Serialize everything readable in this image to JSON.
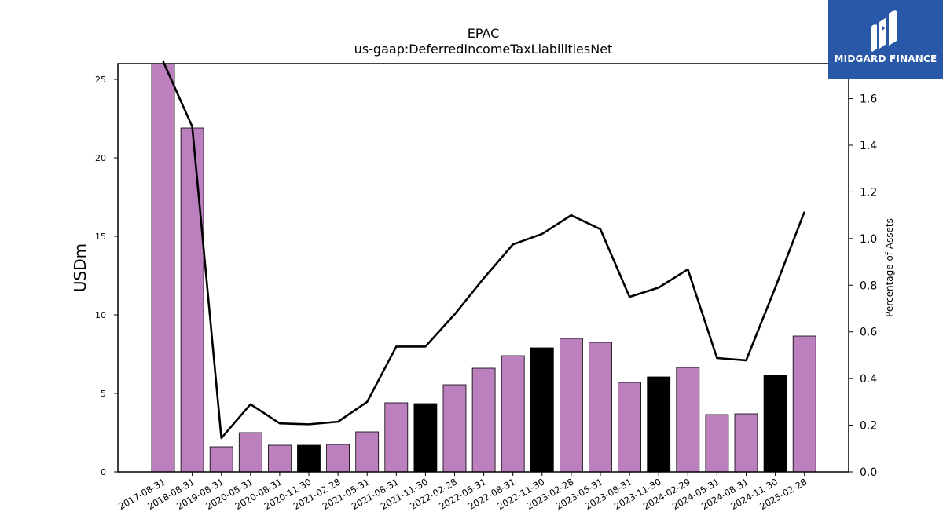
{
  "header": {
    "title": "EPAC",
    "subtitle": "us-gaap:DeferredIncomeTaxLiabilitiesNet"
  },
  "brand": {
    "name": "MIDGARD FINANCE",
    "color": "#2a58a8"
  },
  "chart_data": {
    "type": "bar",
    "title": "EPAC",
    "subtitle": "us-gaap:DeferredIncomeTaxLiabilitiesNet",
    "ylabel": "USDm",
    "y2label": "Percentage of Assets",
    "ylim": [
      0,
      26
    ],
    "y2lim": [
      0,
      1.75
    ],
    "yticks": [
      0,
      5,
      10,
      15,
      20,
      25
    ],
    "y2ticks": [
      "0.0",
      "0.2",
      "0.4",
      "0.6",
      "0.8",
      "1.0",
      "1.2",
      "1.4",
      "1.6"
    ],
    "grid": false,
    "categories": [
      "2017-08-31",
      "2018-08-31",
      "2019-08-31",
      "2020-05-31",
      "2020-08-31",
      "2020-11-30",
      "2021-02-28",
      "2021-05-31",
      "2021-08-31",
      "2021-11-30",
      "2022-02-28",
      "2022-05-31",
      "2022-08-31",
      "2022-11-30",
      "2023-02-28",
      "2023-05-31",
      "2023-08-31",
      "2023-11-30",
      "2024-02-29",
      "2024-05-31",
      "2024-08-31",
      "2024-11-30",
      "2025-02-28"
    ],
    "series": [
      {
        "kind": "bar",
        "axis": "left",
        "values": [
          26.0,
          21.9,
          1.6,
          2.5,
          1.7,
          1.7,
          1.75,
          2.55,
          4.4,
          4.35,
          5.55,
          6.6,
          7.4,
          7.9,
          8.5,
          8.25,
          5.7,
          6.05,
          6.65,
          3.65,
          3.7,
          6.15,
          8.65
        ],
        "colors": [
          "#bb80bd",
          "#bb80bd",
          "#bb80bd",
          "#bb80bd",
          "#bb80bd",
          "#000000",
          "#bb80bd",
          "#bb80bd",
          "#bb80bd",
          "#000000",
          "#bb80bd",
          "#bb80bd",
          "#bb80bd",
          "#000000",
          "#bb80bd",
          "#bb80bd",
          "#bb80bd",
          "#000000",
          "#bb80bd",
          "#bb80bd",
          "#bb80bd",
          "#000000",
          "#bb80bd"
        ]
      },
      {
        "kind": "line",
        "axis": "right",
        "color": "#000000",
        "values": [
          1.76,
          1.48,
          0.145,
          0.29,
          0.208,
          0.204,
          0.215,
          0.3,
          0.537,
          0.537,
          0.675,
          0.83,
          0.975,
          1.02,
          1.1,
          1.04,
          0.75,
          0.79,
          0.868,
          0.488,
          0.478,
          0.79,
          1.115
        ]
      }
    ]
  }
}
